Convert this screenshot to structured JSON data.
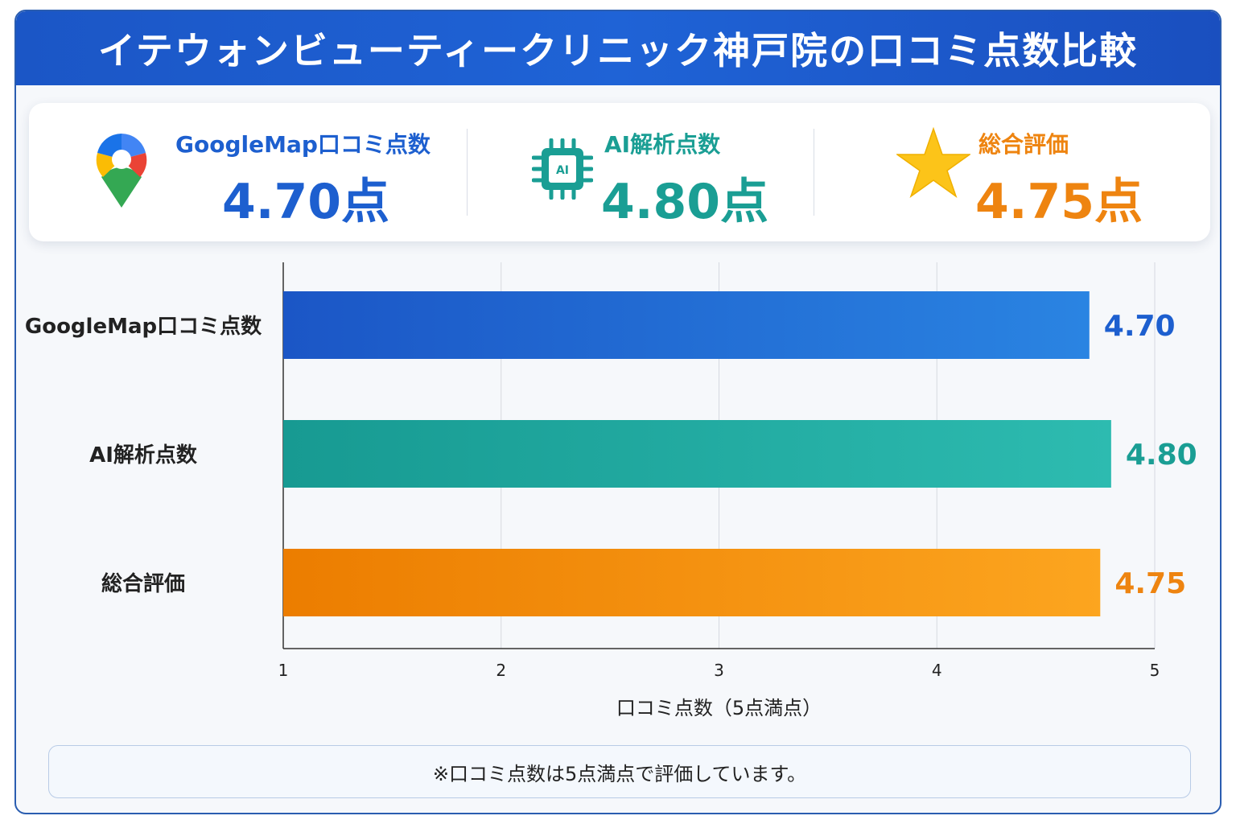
{
  "title": "イテウォンビューティークリニック神戸院の口コミ点数比較",
  "summary": {
    "google": {
      "label": "GoogleMap口コミ点数",
      "value": "4.70点"
    },
    "ai": {
      "label": "AI解析点数",
      "value": "4.80点",
      "chip_text": "AI"
    },
    "total": {
      "label": "総合評価",
      "value": "4.75点"
    }
  },
  "colors": {
    "blue": "#1d5fcf",
    "teal": "#1a9e94",
    "orange": "#ee8410"
  },
  "icons": {
    "google": "map-pin-icon",
    "ai": "ai-chip-icon",
    "total": "star-icon"
  },
  "chart_data": {
    "type": "bar",
    "orientation": "horizontal",
    "categories": [
      "GoogleMap口コミ点数",
      "AI解析点数",
      "総合評価"
    ],
    "values": [
      4.7,
      4.8,
      4.75
    ],
    "value_labels": [
      "4.70",
      "4.80",
      "4.75"
    ],
    "colors": [
      "#1d5fcf",
      "#1a9e94",
      "#ee8410"
    ],
    "xlabel": "口コミ点数（5点満点）",
    "xlim": [
      1,
      5
    ],
    "xticks": [
      1,
      2,
      3,
      4,
      5
    ],
    "grid": true
  },
  "note": "※口コミ点数は5点満点で評価しています。"
}
